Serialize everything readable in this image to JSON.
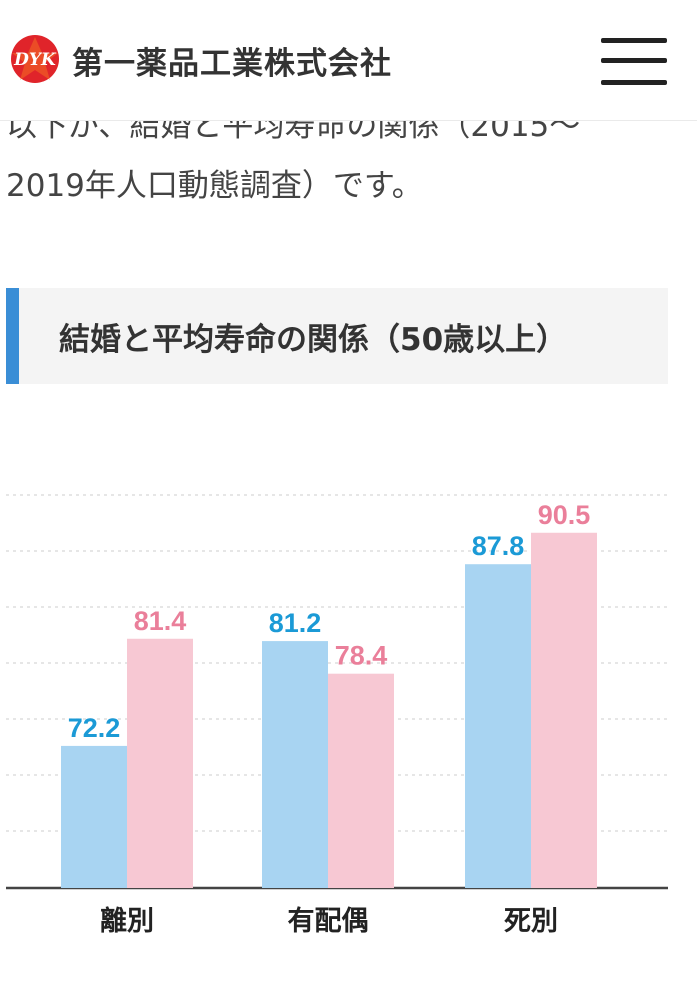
{
  "header": {
    "logo_text": "DYK",
    "company_name": "第一薬品工業株式会社"
  },
  "article": {
    "intro_line1": "以下が、結婚と平均寿命の関係（2015〜",
    "intro_line2": "2019年人口動態調査）です。",
    "section_title": "結婚と平均寿命の関係（50歳以上）"
  },
  "colors": {
    "accent": "#3a8ed6",
    "male_bar": "#a8d4f2",
    "female_bar": "#f7c8d3",
    "male_label": "#1b9ad6",
    "female_label": "#ea7f9a"
  },
  "chart_data": {
    "type": "bar",
    "categories": [
      "離別",
      "有配偶",
      "死別"
    ],
    "series": [
      {
        "values": [
          72.2,
          81.2,
          87.8
        ]
      },
      {
        "values": [
          81.4,
          78.4,
          90.5
        ]
      }
    ],
    "ylim": [
      60,
      94
    ],
    "grid": true,
    "data_labels": true
  }
}
